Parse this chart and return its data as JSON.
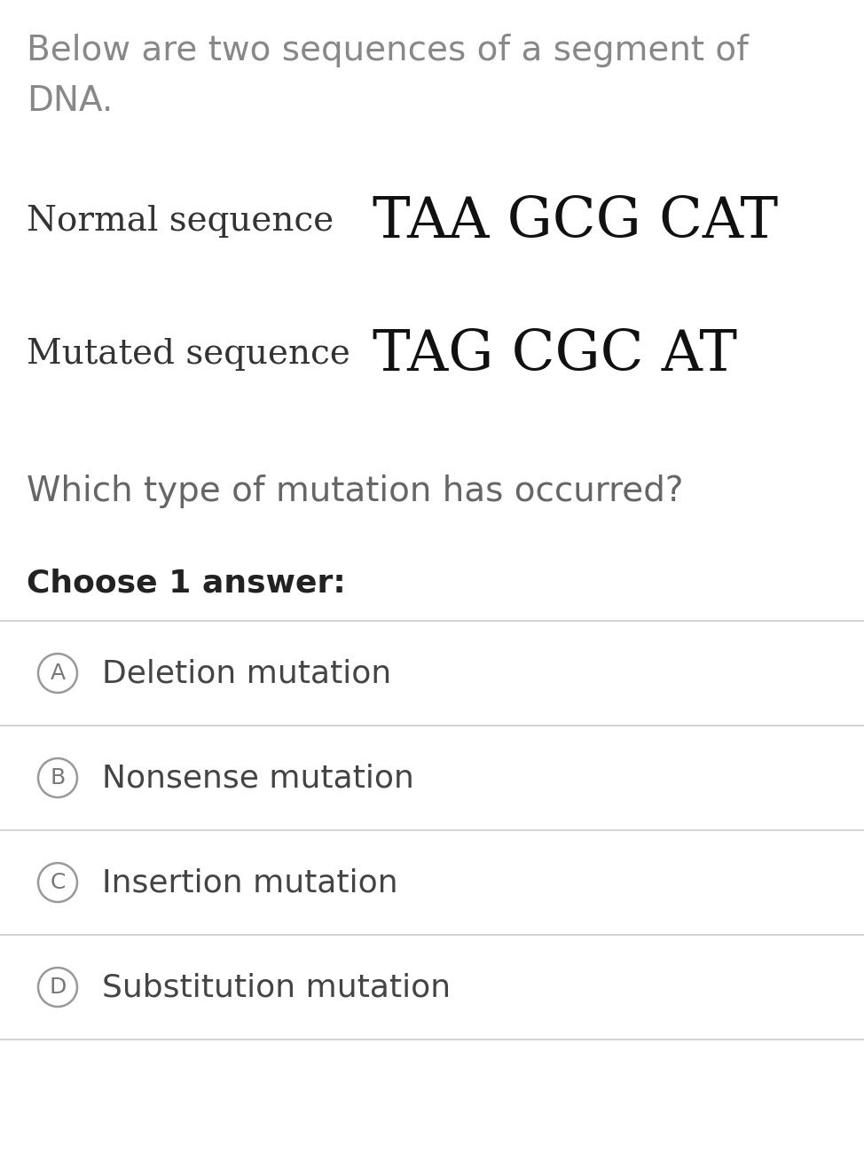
{
  "background_color": "#ffffff",
  "intro_text_line1": "Below are two sequences of a segment of",
  "intro_text_line2": "DNA.",
  "intro_text_color": "#888888",
  "intro_text_fontsize": 28,
  "normal_label": "Normal sequence",
  "normal_sequence": "TAA GCG CAT",
  "mutated_label": "Mutated sequence",
  "mutated_sequence": "TAG CGC AT",
  "label_color": "#333333",
  "label_fontsize": 28,
  "sequence_fontsize": 46,
  "sequence_color": "#111111",
  "question_text": "Which type of mutation has occurred?",
  "question_fontsize": 28,
  "question_color": "#666666",
  "choose_text": "Choose 1 answer:",
  "choose_fontsize": 26,
  "choose_color": "#222222",
  "options": [
    {
      "letter": "A",
      "text": "Deletion mutation"
    },
    {
      "letter": "B",
      "text": "Nonsense mutation"
    },
    {
      "letter": "C",
      "text": "Insertion mutation"
    },
    {
      "letter": "D",
      "text": "Substitution mutation"
    }
  ],
  "option_fontsize": 26,
  "option_text_color": "#444444",
  "option_letter_color": "#777777",
  "divider_color": "#cccccc",
  "circle_edge_color": "#999999",
  "fig_width": 9.74,
  "fig_height": 13.18,
  "dpi": 100
}
